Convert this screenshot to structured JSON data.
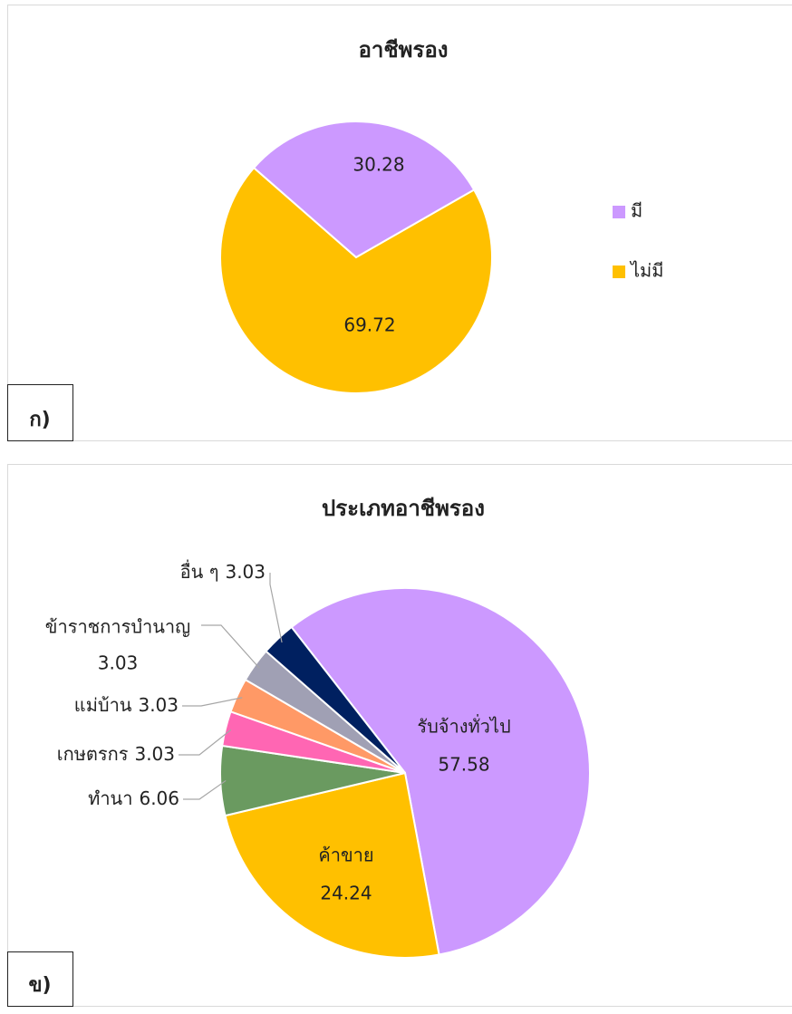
{
  "chart_data": [
    {
      "type": "pie",
      "label": "ก)",
      "title": "อาชีพรอง",
      "categories": [
        "มี",
        "ไม่มี"
      ],
      "values": [
        30.28,
        69.72
      ],
      "colors": [
        "#cc99ff",
        "#ffc000"
      ],
      "legend": "right"
    },
    {
      "type": "pie",
      "label": "ข)",
      "title": "ประเภทอาชีพรอง",
      "categories": [
        "รับจ้างทั่วไป",
        "ค้าขาย",
        "ทำนา",
        "เกษตรกร",
        "แม่บ้าน",
        "ข้าราชการบำนาญ",
        "อื่น ๆ"
      ],
      "values": [
        57.58,
        24.24,
        6.06,
        3.03,
        3.03,
        3.03,
        3.03
      ],
      "colors": [
        "#cc99ff",
        "#ffc000",
        "#6a9a60",
        "#ff66b3",
        "#ff9966",
        "#a0a0b4",
        "#002060"
      ]
    }
  ]
}
